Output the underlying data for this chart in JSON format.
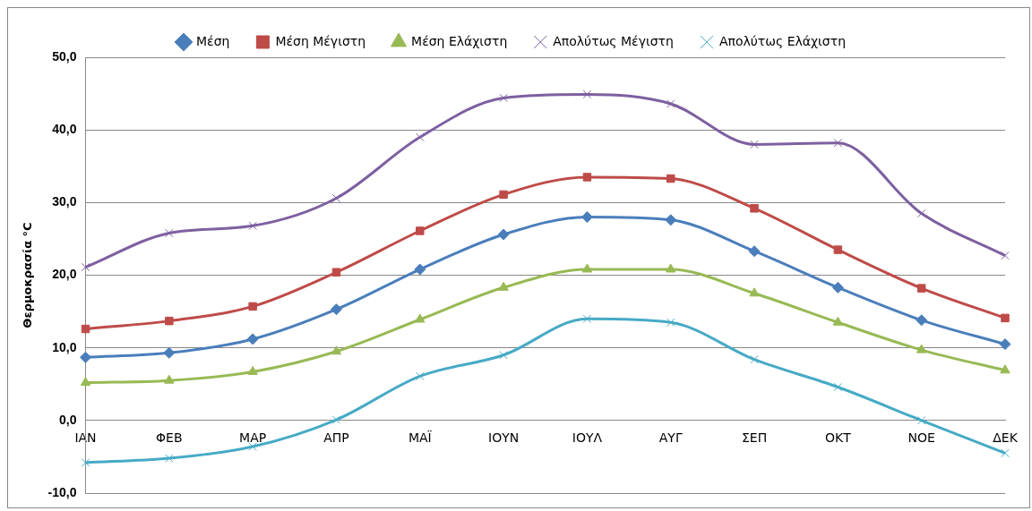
{
  "chart_data": {
    "type": "line",
    "ylabel": "Θερμοκρασία °C",
    "categories": [
      "ΙΑΝ",
      "ΦΕΒ",
      "ΜΑΡ",
      "ΑΠΡ",
      "ΜΑΪ",
      "ΙΟΥΝ",
      "ΙΟΥΛ",
      "ΑΥΓ",
      "ΣΕΠ",
      "ΟΚΤ",
      "ΝΟΕ",
      "ΔΕΚ"
    ],
    "series": [
      {
        "name": "Μέση",
        "color": "#4a7ebb",
        "marker": "diamond",
        "values": [
          8.7,
          9.3,
          11.2,
          15.3,
          20.8,
          25.6,
          28.0,
          27.6,
          23.3,
          18.3,
          13.8,
          10.5
        ]
      },
      {
        "name": "Μέση Μέγιστη",
        "color": "#be4b48",
        "marker": "square",
        "values": [
          12.6,
          13.7,
          15.7,
          20.4,
          26.1,
          31.1,
          33.5,
          33.3,
          29.2,
          23.5,
          18.2,
          14.1
        ]
      },
      {
        "name": "Μέση Ελάχιστη",
        "color": "#98b954",
        "marker": "triangle",
        "values": [
          5.2,
          5.5,
          6.7,
          9.5,
          13.9,
          18.3,
          20.8,
          20.8,
          17.5,
          13.5,
          9.7,
          6.9
        ]
      },
      {
        "name": "Απολύτως Μέγιστη",
        "color": "#7d60a0",
        "marker": "cross",
        "values": [
          21.1,
          25.8,
          26.8,
          30.6,
          39.0,
          44.4,
          44.9,
          43.6,
          38.0,
          38.2,
          28.5,
          22.7
        ]
      },
      {
        "name": "Απολύτως Ελάχιστη",
        "color": "#46aac5",
        "marker": "cross",
        "values": [
          -5.8,
          -5.2,
          -3.6,
          0.1,
          6.1,
          9.0,
          14.0,
          13.5,
          8.4,
          4.6,
          0.0,
          -4.5
        ]
      }
    ],
    "ylim": [
      -10,
      50
    ],
    "yticks": [
      {
        "value": -10,
        "label": "-10,0"
      },
      {
        "value": 0,
        "label": "0,0"
      },
      {
        "value": 10,
        "label": "10,0"
      },
      {
        "value": 20,
        "label": "20,0"
      },
      {
        "value": 30,
        "label": "30,0"
      },
      {
        "value": 40,
        "label": "40,0"
      },
      {
        "value": 50,
        "label": "50,0"
      }
    ],
    "grid": "y",
    "legend": "top",
    "line_style": "solid"
  }
}
